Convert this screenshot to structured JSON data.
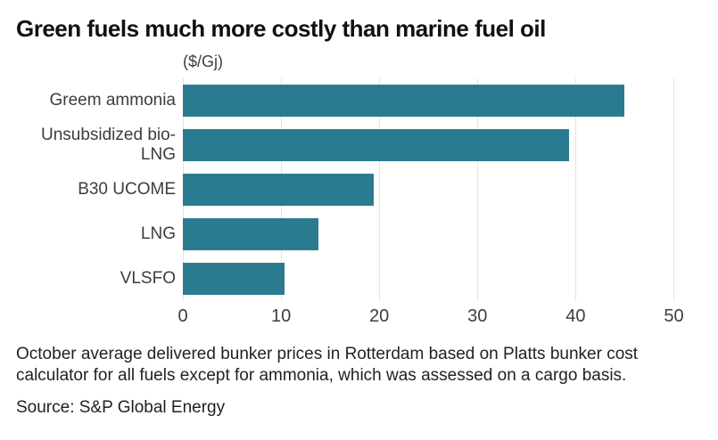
{
  "title": "Green fuels much more costly than marine fuel oil",
  "units_label": "($/Gj)",
  "chart_data": {
    "type": "bar",
    "orientation": "horizontal",
    "title": "Green fuels much more costly than marine fuel oil",
    "xlabel": "($/Gj)",
    "categories": [
      "Greem ammonia",
      "Unsubsidized bio-LNG",
      "B30 UCOME",
      "LNG",
      "VLSFO"
    ],
    "values": [
      45,
      39.3,
      19.4,
      13.8,
      10.4
    ],
    "xticks": [
      0,
      10,
      20,
      30,
      40,
      50
    ],
    "xlim": [
      0,
      52.5
    ],
    "grid": true,
    "legend": "none",
    "bar_color": "#2A7B90"
  },
  "footnote": "October average delivered bunker prices in Rotterdam based on Platts bunker cost calculator for all fuels except for ammonia, which was assessed on a cargo basis.",
  "source": "Source: S&P Global Energy",
  "colors": {
    "bar": "#2A7B90",
    "gridline": "#E4E4E4",
    "title_text": "#111111",
    "label_text": "#3D3D3D",
    "footnote_text": "#222222",
    "background": "#FFFFFF"
  }
}
